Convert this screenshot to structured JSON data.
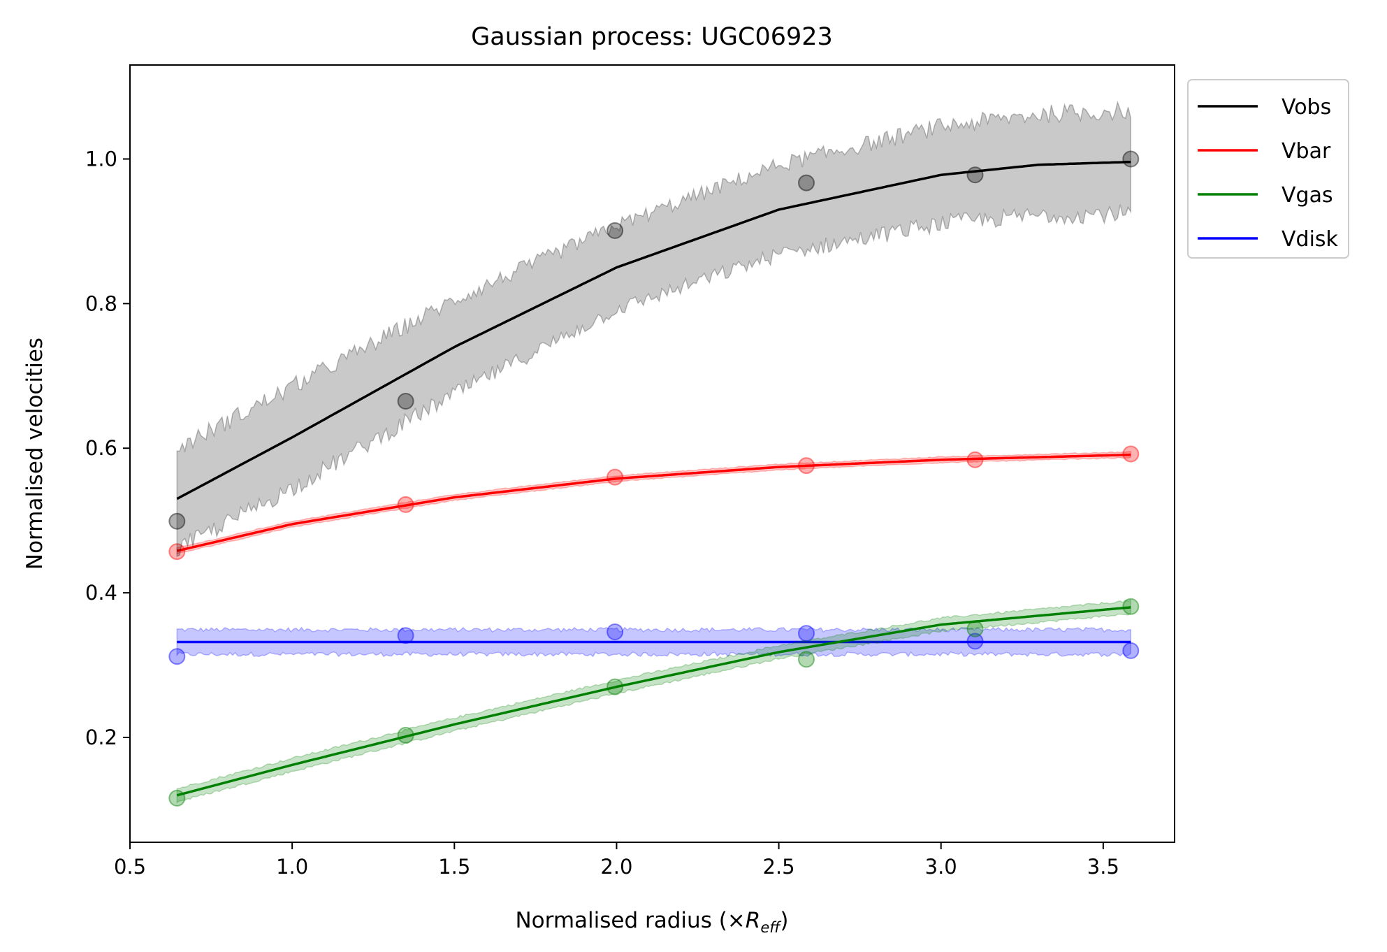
{
  "chart_data": {
    "type": "line",
    "title": "Gaussian process: UGC06923",
    "xlabel_prefix": "Normalised radius (×",
    "xlabel_symbol": "R",
    "xlabel_subscript": "eff",
    "xlabel_suffix": ")",
    "ylabel": "Normalised velocities",
    "xlim": [
      0.5,
      3.72
    ],
    "ylim": [
      0.055,
      1.13
    ],
    "xticks": [
      0.5,
      1.0,
      1.5,
      2.0,
      2.5,
      3.0,
      3.5
    ],
    "yticks": [
      0.2,
      0.4,
      0.6,
      0.8,
      1.0
    ],
    "legend_position": "outside-top-right",
    "grid": false,
    "x_observed": [
      0.645,
      1.35,
      1.995,
      2.585,
      3.105,
      3.585
    ],
    "series": [
      {
        "name": "Vobs",
        "color": "#000000",
        "observed": [
          0.499,
          0.665,
          0.901,
          0.967,
          0.978,
          1.0
        ],
        "fit_x": [
          0.645,
          1.0,
          1.5,
          2.0,
          2.5,
          3.0,
          3.3,
          3.585
        ],
        "fit_y": [
          0.53,
          0.615,
          0.74,
          0.85,
          0.93,
          0.978,
          0.992,
          0.996
        ],
        "band_halfwidth": [
          0.07,
          0.07,
          0.065,
          0.058,
          0.062,
          0.067,
          0.07,
          0.071
        ]
      },
      {
        "name": "Vbar",
        "color": "#ff0000",
        "observed": [
          0.457,
          0.522,
          0.56,
          0.576,
          0.584,
          0.592
        ],
        "fit_x": [
          0.645,
          1.0,
          1.5,
          2.0,
          2.5,
          3.0,
          3.585
        ],
        "fit_y": [
          0.458,
          0.495,
          0.532,
          0.558,
          0.574,
          0.584,
          0.591
        ],
        "band_halfwidth": [
          0.004,
          0.004,
          0.004,
          0.004,
          0.004,
          0.004,
          0.004
        ]
      },
      {
        "name": "Vgas",
        "color": "#008000",
        "observed": [
          0.116,
          0.203,
          0.27,
          0.308,
          0.35,
          0.381
        ],
        "fit_x": [
          0.645,
          1.0,
          1.5,
          2.0,
          2.5,
          3.0,
          3.585
        ],
        "fit_y": [
          0.12,
          0.162,
          0.218,
          0.27,
          0.318,
          0.356,
          0.38
        ],
        "band_halfwidth": [
          0.009,
          0.009,
          0.009,
          0.009,
          0.009,
          0.009,
          0.009
        ]
      },
      {
        "name": "Vdisk",
        "color": "#0000ff",
        "observed": [
          0.312,
          0.341,
          0.346,
          0.344,
          0.333,
          0.32
        ],
        "fit_x": [
          0.645,
          3.585
        ],
        "fit_y": [
          0.332,
          0.332
        ],
        "band_halfwidth": [
          0.017,
          0.017
        ]
      }
    ]
  }
}
